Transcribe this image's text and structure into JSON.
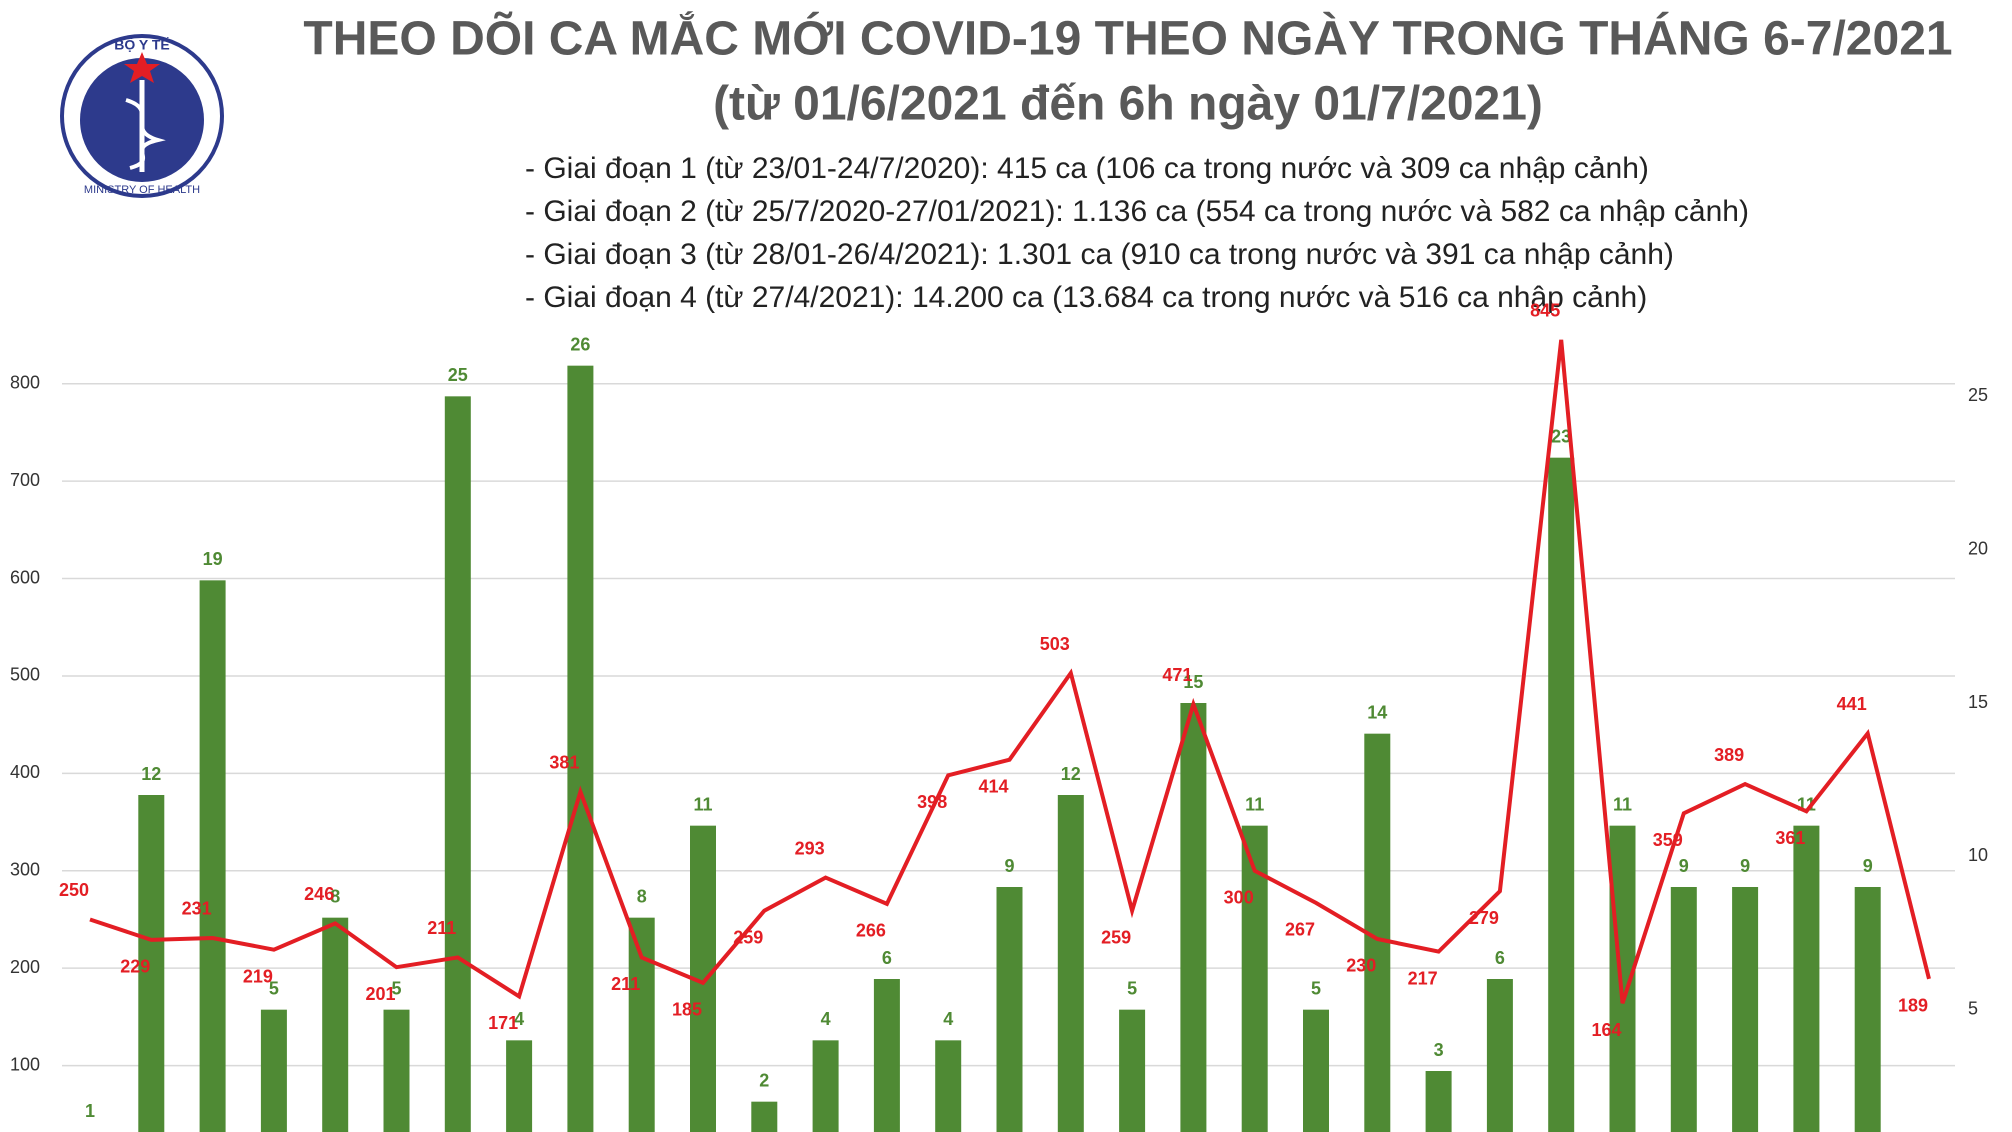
{
  "logo": {
    "top_text": "BỘ Y TẾ",
    "bottom_text": "MINISTRY OF HEALTH"
  },
  "chart_data": {
    "type": "combo",
    "title": "THEO DÕI CA MẮC MỚI COVID-19 THEO NGÀY TRONG THÁNG 6-7/2021",
    "subtitle": "(từ 01/6/2021 đến 6h ngày 01/7/2021)",
    "notes": [
      "- Giai đoạn 1 (từ 23/01-24/7/2020): 415 ca (106 ca trong nước và 309 ca nhập cảnh)",
      "- Giai đoạn 2 (từ 25/7/2020-27/01/2021): 1.136 ca (554 ca trong nước và 582 ca nhập cảnh)",
      "- Giai đoạn 3 (từ 28/01-26/4/2021): 1.301 ca (910 ca trong nước và 391 ca nhập cảnh)",
      "- Giai đoạn 4 (từ 27/4/2021): 14.200 ca (13.684 ca trong nước và 516 ca nhập cảnh)"
    ],
    "categories": [
      null,
      null,
      null,
      null,
      null,
      null,
      null,
      null,
      null,
      null,
      null,
      null,
      null,
      null,
      null,
      null,
      null,
      null,
      null,
      null,
      null,
      null,
      null,
      null,
      null,
      null,
      null,
      null,
      null,
      null,
      null
    ],
    "series": [
      {
        "type": "bar",
        "axis": "y2",
        "color": "#4f8a34",
        "values": [
          1,
          12,
          19,
          5,
          8,
          5,
          25,
          4,
          26,
          8,
          11,
          2,
          4,
          6,
          4,
          9,
          12,
          5,
          15,
          11,
          5,
          14,
          3,
          6,
          23,
          11,
          9,
          9,
          11,
          9,
          null
        ]
      },
      {
        "type": "line",
        "color": "#e31e24",
        "values": [
          250,
          229,
          231,
          219,
          246,
          201,
          211,
          171,
          381,
          211,
          185,
          259,
          293,
          266,
          398,
          414,
          503,
          259,
          471,
          300,
          267,
          230,
          217,
          279,
          845,
          164,
          359,
          389,
          361,
          441,
          189
        ]
      }
    ],
    "ylim": [
      0,
      850
    ],
    "yticks": [
      100,
      200,
      300,
      400,
      500,
      600,
      700,
      800
    ],
    "y2lim": [
      0,
      27
    ],
    "y2ticks": [
      5,
      10,
      15,
      20,
      25
    ],
    "grid": true
  }
}
